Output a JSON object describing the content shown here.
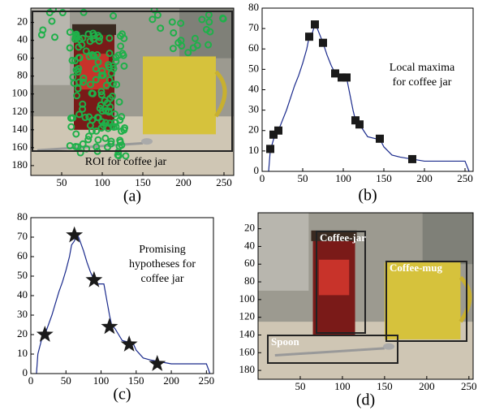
{
  "panels": [
    {
      "label": "(a)",
      "kind": "image",
      "xlim": [
        12,
        262
      ],
      "ylim": [
        4,
        191
      ],
      "xticks": [
        50,
        100,
        150,
        200,
        250
      ],
      "yticks": [
        20,
        40,
        60,
        80,
        100,
        120,
        140,
        160,
        180
      ],
      "caption": "ROI for coffee jar"
    },
    {
      "label": "(b)",
      "kind": "line",
      "xlim": [
        0,
        260
      ],
      "ylim": [
        0,
        80
      ],
      "xticks": [
        0,
        50,
        100,
        150,
        200,
        250
      ],
      "yticks": [
        0,
        10,
        20,
        30,
        40,
        50,
        60,
        70,
        80
      ],
      "x": [
        8,
        10,
        15,
        20,
        25,
        30,
        35,
        40,
        45,
        50,
        55,
        58,
        62,
        65,
        68,
        72,
        75,
        80,
        85,
        90,
        95,
        100,
        104,
        108,
        112,
        115,
        120,
        125,
        130,
        140,
        145,
        150,
        160,
        170,
        185,
        200,
        220,
        245,
        250,
        255
      ],
      "y": [
        0,
        10,
        17,
        20,
        25,
        30,
        36,
        42,
        47,
        53,
        60,
        66,
        68,
        72,
        70,
        66,
        63,
        57,
        52,
        48,
        46,
        46,
        46,
        38,
        30,
        25,
        23,
        20,
        17,
        16,
        16,
        12,
        8,
        7,
        6,
        5,
        5,
        5,
        5,
        0
      ],
      "marker": "square",
      "markers": {
        "x": [
          10,
          14,
          20,
          58,
          65,
          75,
          90,
          98,
          104,
          115,
          120,
          145,
          185
        ],
        "y": [
          11,
          18,
          20,
          66,
          72,
          63,
          48,
          46,
          46,
          25,
          23,
          16,
          6
        ]
      },
      "annotation": [
        "Local maxima",
        "for coffee jar"
      ]
    },
    {
      "label": "(c)",
      "kind": "line",
      "xlim": [
        0,
        260
      ],
      "ylim": [
        0,
        80
      ],
      "xticks": [
        0,
        50,
        100,
        150,
        200,
        250
      ],
      "yticks": [
        0,
        10,
        20,
        30,
        40,
        50,
        60,
        70,
        80
      ],
      "x": [
        8,
        10,
        15,
        20,
        25,
        30,
        35,
        40,
        45,
        50,
        55,
        58,
        62,
        65,
        68,
        72,
        75,
        80,
        85,
        90,
        95,
        100,
        104,
        108,
        112,
        115,
        120,
        125,
        130,
        140,
        145,
        150,
        160,
        170,
        185,
        200,
        220,
        245,
        250,
        255
      ],
      "y": [
        0,
        10,
        17,
        20,
        25,
        30,
        36,
        42,
        47,
        53,
        60,
        66,
        68,
        72,
        70,
        66,
        63,
        57,
        52,
        48,
        46,
        46,
        46,
        38,
        30,
        25,
        23,
        20,
        17,
        16,
        16,
        12,
        8,
        7,
        6,
        5,
        5,
        5,
        5,
        0
      ],
      "marker": "star",
      "markers": {
        "x": [
          20,
          62,
          90,
          112,
          140,
          180
        ],
        "y": [
          20,
          71,
          48,
          24,
          15,
          5
        ]
      },
      "annotation": [
        "Promising",
        "hypotheses for",
        "coffee jar"
      ]
    },
    {
      "label": "(d)",
      "kind": "image",
      "xlim": [
        0,
        255
      ],
      "ylim": [
        2,
        190
      ],
      "xticks": [
        50,
        100,
        150,
        200,
        250
      ],
      "yticks": [
        20,
        40,
        60,
        80,
        100,
        120,
        140,
        160,
        180
      ],
      "boxes": [
        {
          "label": "Coffee-jar"
        },
        {
          "label": "Coffee-mug"
        },
        {
          "label": "Spoon"
        }
      ]
    }
  ]
}
